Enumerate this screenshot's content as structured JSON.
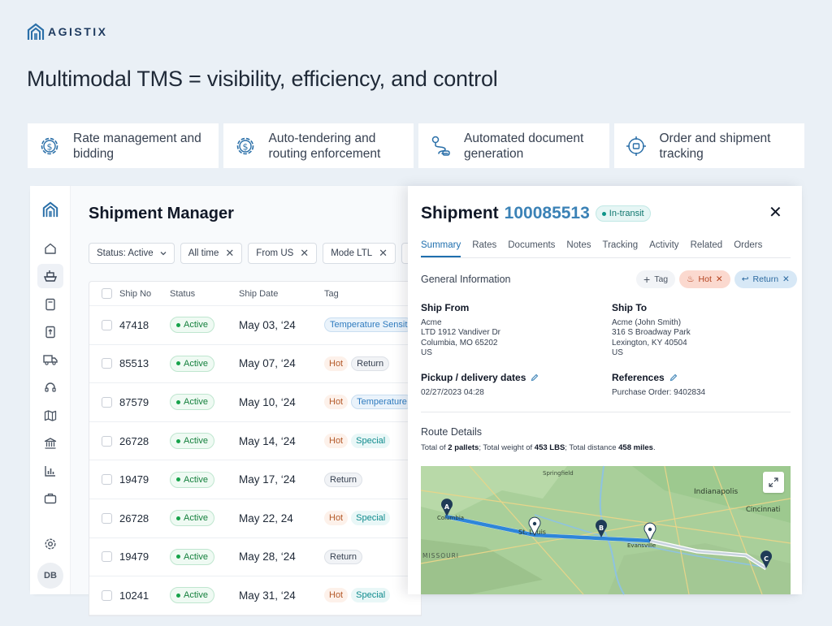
{
  "brand": {
    "name": "AGISTIX"
  },
  "headline": "Multimodal TMS = visibility, efficiency, and control",
  "features": [
    {
      "icon": "gear-dollar-icon",
      "label_line1": "Rate management and",
      "label_line2": "bidding"
    },
    {
      "icon": "gear-dollar-icon",
      "label_line1": "Auto-tendering and",
      "label_line2": "routing enforcement"
    },
    {
      "icon": "route-icon",
      "label_line1": "Automated document",
      "label_line2": "generation"
    },
    {
      "icon": "tracking-target-icon",
      "label_line1": "Order and shipment",
      "label_line2": "tracking"
    }
  ],
  "manager": {
    "title": "Shipment Manager",
    "filters": [
      {
        "label": "Status: Active",
        "type": "dropdown"
      },
      {
        "label": "All time",
        "type": "removable"
      },
      {
        "label": "From US",
        "type": "removable"
      },
      {
        "label": "Mode LTL",
        "type": "removable"
      }
    ],
    "columns": {
      "ship_no": "Ship No",
      "status": "Status",
      "ship_date": "Ship Date",
      "tag": "Tag"
    },
    "rows": [
      {
        "ship_no": "47418",
        "status": "Active",
        "date": "May 03, ‘24",
        "tags": [
          [
            "Temperature Sensit",
            "temp"
          ]
        ]
      },
      {
        "ship_no": "85513",
        "status": "Active",
        "date": "May 07, ‘24",
        "tags": [
          [
            "Hot",
            "hot"
          ],
          [
            "Return",
            "ret"
          ]
        ]
      },
      {
        "ship_no": "87579",
        "status": "Active",
        "date": "May 10, ‘24",
        "tags": [
          [
            "Hot",
            "hot"
          ],
          [
            "Temperature",
            "temp"
          ]
        ]
      },
      {
        "ship_no": "26728",
        "status": "Active",
        "date": "May 14, ‘24",
        "tags": [
          [
            "Hot",
            "hot"
          ],
          [
            "Special",
            "spec"
          ]
        ]
      },
      {
        "ship_no": "19479",
        "status": "Active",
        "date": "May 17, ‘24",
        "tags": [
          [
            "Return",
            "ret"
          ]
        ]
      },
      {
        "ship_no": "26728",
        "status": "Active",
        "date": "May 22, 24",
        "tags": [
          [
            "Hot",
            "hot"
          ],
          [
            "Special",
            "spec"
          ]
        ]
      },
      {
        "ship_no": "19479",
        "status": "Active",
        "date": "May 28, ‘24",
        "tags": [
          [
            "Return",
            "ret"
          ]
        ]
      },
      {
        "ship_no": "10241",
        "status": "Active",
        "date": "May 31, ‘24",
        "tags": [
          [
            "Hot",
            "hot"
          ],
          [
            "Special",
            "spec"
          ]
        ]
      }
    ]
  },
  "sidebar": {
    "icons": [
      "logo-icon",
      "home-icon",
      "ship-icon",
      "document-icon",
      "document-upload-icon",
      "truck-icon",
      "headset-icon",
      "map-icon",
      "bank-icon",
      "chart-icon",
      "briefcase-icon",
      "settings-icon"
    ],
    "avatar": "DB"
  },
  "detail": {
    "title_prefix": "Shipment",
    "shipment_no": "100085513",
    "status": "In-transit",
    "tabs": [
      "Summary",
      "Rates",
      "Documents",
      "Notes",
      "Tracking",
      "Activity",
      "Related",
      "Orders"
    ],
    "active_tab": "Summary",
    "general_info_label": "General Information",
    "tag_button": "Tag",
    "tags": [
      {
        "label": "Hot",
        "style": "hot"
      },
      {
        "label": "Return",
        "style": "ret"
      }
    ],
    "ship_from": {
      "heading": "Ship From",
      "line1": "Acme",
      "line2": "LTD 1912 Vandiver Dr",
      "line3": "Columbia, MO 65202",
      "line4": "US"
    },
    "ship_to": {
      "heading": "Ship To",
      "line1": "Acme (John Smith)",
      "line2": "316 S Broadway Park",
      "line3": "Lexington, KY 40504",
      "line4": "US"
    },
    "pickup": {
      "heading": "Pickup / delivery dates",
      "value": "02/27/2023 04:28"
    },
    "references": {
      "heading": "References",
      "value": "Purchase Order: 9402834"
    },
    "route": {
      "label": "Route Details",
      "prefix": "Total of ",
      "pallets": "2 pallets",
      "mid1": ";  Total weight of ",
      "weight": "453 LBS",
      "mid2": ";  Total distance ",
      "distance": "458 miles",
      "suffix": "."
    },
    "map": {
      "labels": {
        "springfield": "Springfield",
        "indianapolis": "Indianapolis",
        "columbia": "Columbia",
        "st_louis": "St. Louis",
        "missouri": "MISSOURI",
        "evansville": "Evansville",
        "cincinnati": "Cincinnati"
      },
      "markers": [
        "A",
        "B",
        "C"
      ]
    }
  }
}
